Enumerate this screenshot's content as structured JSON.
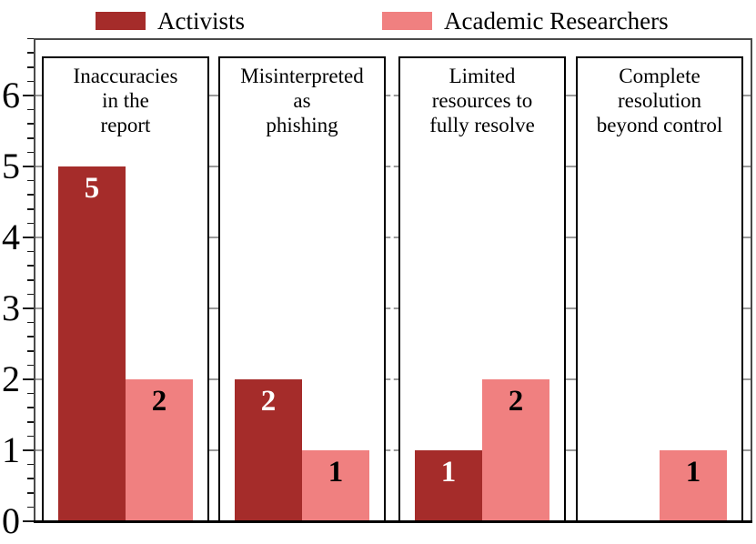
{
  "chart_data": {
    "type": "bar",
    "title": "",
    "xlabel": "",
    "ylabel": "",
    "categories": [
      {
        "label": "Inaccuracies in the report",
        "label_lines": [
          "Inaccuracies",
          "in the",
          "report"
        ]
      },
      {
        "label": "Misinterpreted as phishing",
        "label_lines": [
          "Misinterpreted",
          "as",
          "phishing"
        ]
      },
      {
        "label": "Limited resources to fully resolve",
        "label_lines": [
          "Limited",
          "resources to",
          "fully resolve"
        ]
      },
      {
        "label": "Complete resolution beyond control",
        "label_lines": [
          "Complete",
          "resolution",
          "beyond control"
        ]
      }
    ],
    "series": [
      {
        "name": "Activists",
        "color": "#a52c2a",
        "label_color": "#ffffff",
        "values": [
          5,
          2,
          1,
          0
        ]
      },
      {
        "name": "Academic Researchers",
        "color": "#f08080",
        "label_color": "#000000",
        "values": [
          2,
          1,
          2,
          1
        ]
      }
    ],
    "yticks": [
      0,
      1,
      2,
      3,
      4,
      5,
      6
    ],
    "ylim": [
      0,
      6.8
    ],
    "minor_tick_step": 0.2,
    "show_values_on_bars": true,
    "legend_position": "top",
    "grid": "dashed horizontal lines at integer ticks, visible only in gaps between white panels"
  }
}
